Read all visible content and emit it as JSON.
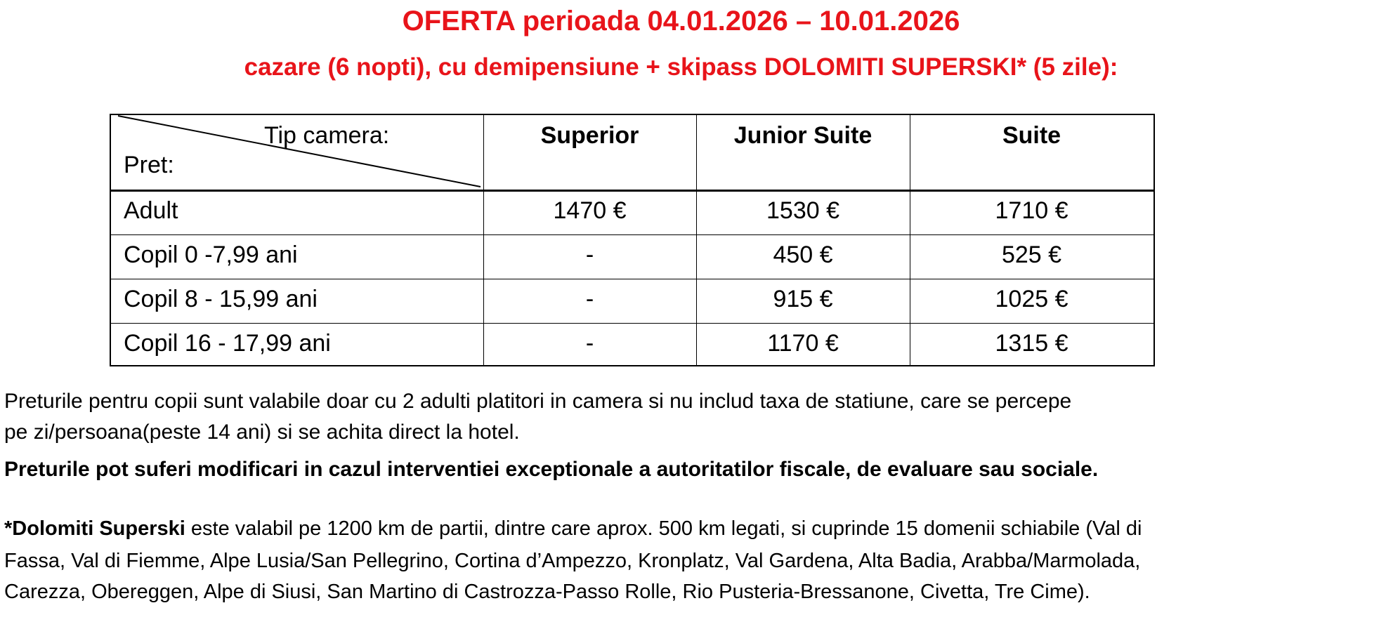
{
  "colors": {
    "title": "#e8141a",
    "text": "#000000",
    "border": "#000000"
  },
  "header": {
    "title": "OFERTA perioada 04.01.2026 – 10.01.2026",
    "subtitle": "cazare (6 nopti), cu demipensiune +  skipass DOLOMITI SUPERSKI* (5 zile):"
  },
  "table": {
    "corner_top": "Tip camera:",
    "corner_bottom": "Pret:",
    "columns": [
      "Superior",
      "Junior Suite",
      "Suite"
    ],
    "rows": [
      {
        "label": "Adult",
        "values": [
          "1470 €",
          "1530 €",
          "1710 €"
        ]
      },
      {
        "label": "Copil  0 -7,99 ani",
        "values": [
          "-",
          "450 €",
          "525 €"
        ]
      },
      {
        "label": "Copil 8 - 15,99 ani",
        "values": [
          "-",
          "915 €",
          "1025 €"
        ]
      },
      {
        "label": "Copil 16 - 17,99 ani",
        "values": [
          "-",
          "1170 €",
          "1315 €"
        ]
      }
    ]
  },
  "notes": {
    "line1": "Preturile pentru copii sunt valabile doar cu 2 adulti platitori in camera si nu includ taxa de statiune, care se percepe",
    "line2": "pe zi/persoana(peste 14 ani) si se achita direct la hotel.",
    "bold_line": "Preturile pot suferi modificari in cazul interventiei exceptionale a autoritatilor fiscale, de evaluare sau sociale."
  },
  "footnote": {
    "bold_prefix": "*Dolomiti Superski",
    "line1_rest": " este valabil pe 1200 km de partii, dintre care aprox. 500 km legati, si cuprinde 15 domenii schiabile (Val di",
    "line2": "Fassa, Val di Fiemme, Alpe Lusia/San Pellegrino, Cortina d’Ampezzo, Kronplatz, Val Gardena, Alta Badia, Arabba/Marmolada,",
    "line3": "Carezza, Obereggen, Alpe di Siusi, San Martino di Castrozza-Passo Rolle, Rio Pusteria-Bressanone, Civetta, Tre Cime)."
  }
}
